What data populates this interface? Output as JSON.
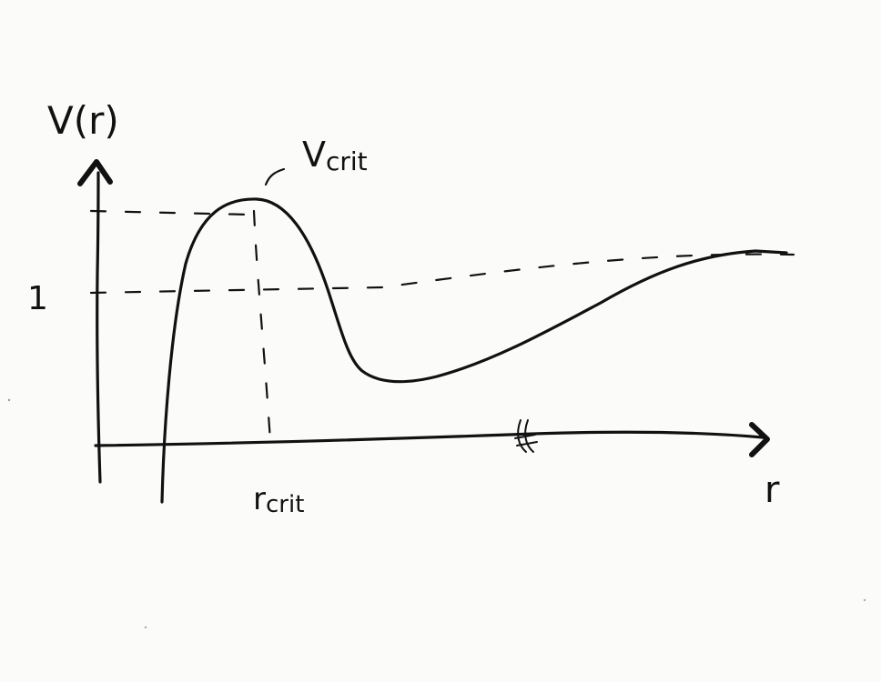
{
  "diagram": {
    "y_axis_label": "V(r)",
    "x_axis_label": "r",
    "peak_label": "V",
    "peak_label_sub": "crit",
    "critical_radius_label": "r",
    "critical_radius_label_sub": "crit",
    "reference_level_label": "1"
  },
  "colors": {
    "ink": "#111111",
    "paper": "#fbfbfa"
  }
}
